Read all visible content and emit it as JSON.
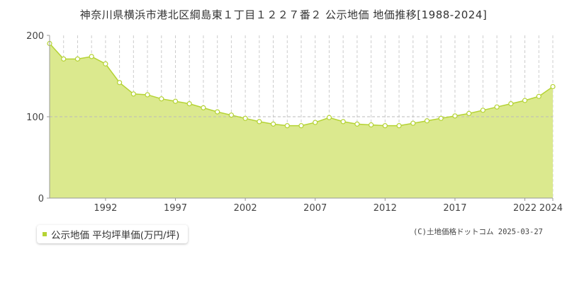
{
  "title": "神奈川県横浜市港北区綱島東１丁目１２２７番２ 公示地価 地価推移[1988-2024]",
  "legend_label": "公示地価 平均坪単価(万円/坪)",
  "credit": "(C)土地価格ドットコム 2025-03-27",
  "colors": {
    "area_fill": "#dbe98e",
    "line": "#b5d334",
    "marker_fill": "#ffffff",
    "grid": "#cccccc",
    "axis": "#999999"
  },
  "chart_data": {
    "type": "area",
    "x": [
      1988,
      1989,
      1990,
      1991,
      1992,
      1993,
      1994,
      1995,
      1996,
      1997,
      1998,
      1999,
      2000,
      2001,
      2002,
      2003,
      2004,
      2005,
      2006,
      2007,
      2008,
      2009,
      2010,
      2011,
      2012,
      2013,
      2014,
      2015,
      2016,
      2017,
      2018,
      2019,
      2020,
      2021,
      2022,
      2023,
      2024
    ],
    "series": [
      {
        "values": [
          190,
          171,
          171,
          174,
          165,
          142,
          128,
          127,
          122,
          119,
          116,
          111,
          106,
          102,
          98,
          94,
          91,
          89,
          89,
          93,
          99,
          94,
          91,
          90,
          89,
          89,
          92,
          95,
          98,
          101,
          104,
          108,
          112,
          116,
          120,
          125,
          137
        ]
      }
    ],
    "xticks": [
      "1992",
      "1997",
      "2002",
      "2007",
      "2012",
      "2017",
      "2022",
      "2024"
    ],
    "yticks": [
      "0",
      "100",
      "200"
    ],
    "ylim": [
      0,
      200
    ],
    "xlim": [
      1988,
      2024
    ],
    "grid": true
  }
}
